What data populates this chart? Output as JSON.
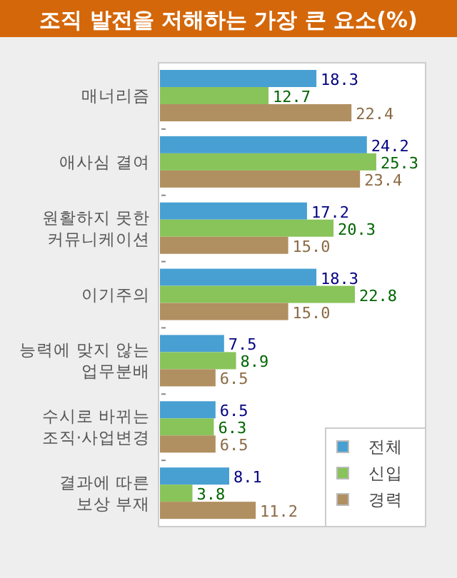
{
  "chart_data": {
    "type": "bar",
    "orientation": "horizontal",
    "title": "조직 발전을 저해하는 가장 큰 요소(%)",
    "categories": [
      "매너리즘",
      "애사심 결여",
      "원활하지 못한\n커뮤니케이션",
      "이기주의",
      "능력에 맞지 않는\n업무분배",
      "수시로 바뀌는\n조직·사업변경",
      "결과에 따른\n보상 부재"
    ],
    "series": [
      {
        "name": "전체",
        "color": "#48a0d2",
        "values": [
          18.3,
          24.2,
          17.2,
          18.3,
          7.5,
          6.5,
          8.1
        ],
        "value_labels": [
          "18.3",
          "24.2",
          "17.2",
          "18.3",
          "7.5",
          "6.5",
          "8.1"
        ]
      },
      {
        "name": "신입",
        "color": "#88c45a",
        "values": [
          12.7,
          25.3,
          20.3,
          22.8,
          8.9,
          6.3,
          3.8
        ],
        "value_labels": [
          "12.7",
          "25.3",
          "20.3",
          "22.8",
          "8.9",
          "6.3",
          "3.8"
        ]
      },
      {
        "name": "경력",
        "color": "#b08f60",
        "values": [
          22.4,
          23.4,
          15.0,
          15.0,
          6.5,
          6.5,
          11.2
        ],
        "value_labels": [
          "22.4",
          "23.4",
          "15.0",
          "15.0",
          "6.5",
          "6.5",
          "11.2"
        ]
      }
    ],
    "legend": "bottom right"
  }
}
